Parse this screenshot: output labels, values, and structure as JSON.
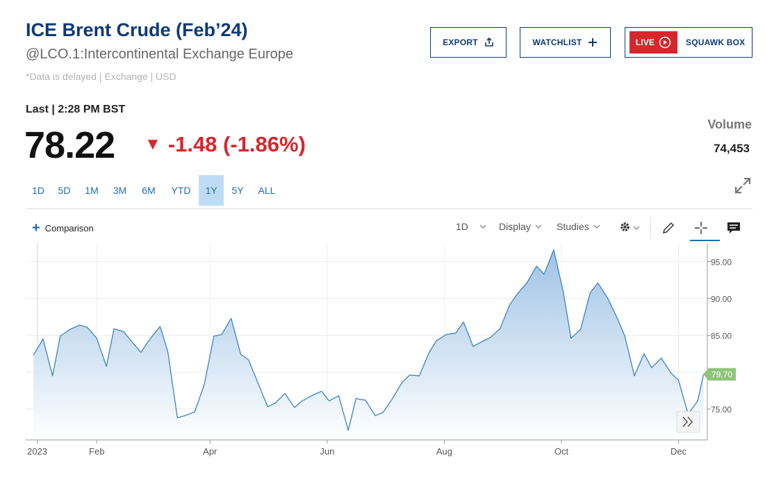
{
  "header": {
    "title": "ICE Brent Crude (Feb’24)",
    "subtitle": "@LCO.1:Intercontinental Exchange Europe",
    "delayed_note": "*Data is delayed | Exchange | USD"
  },
  "buttons": {
    "export": "EXPORT",
    "watchlist": "WATCHLIST",
    "live": "LIVE",
    "squawk": "SQUAWK BOX"
  },
  "quote": {
    "last_label": "Last | 2:28 PM BST",
    "last_price": "78.22",
    "change": "-1.48 (-1.86%)",
    "volume_label": "Volume",
    "volume": "74,453"
  },
  "ranges": [
    {
      "label": "1D",
      "active": false
    },
    {
      "label": "5D",
      "active": false
    },
    {
      "label": "1M",
      "active": false
    },
    {
      "label": "3M",
      "active": false
    },
    {
      "label": "6M",
      "active": false
    },
    {
      "label": "YTD",
      "active": false
    },
    {
      "label": "1Y",
      "active": true
    },
    {
      "label": "5Y",
      "active": false
    },
    {
      "label": "ALL",
      "active": false
    }
  ],
  "toolbar": {
    "comparison": "Comparison",
    "interval": "1D",
    "display": "Display",
    "studies": "Studies"
  },
  "colors": {
    "brand_navy": "#0c3a78",
    "link_blue": "#1f6db0",
    "down_red": "#d7262c",
    "line": "#3a84c0",
    "area_top": "#9fc3e6",
    "last_badge": "#8fc57a"
  },
  "chart_data": {
    "type": "area",
    "title": "",
    "xlabel": "",
    "ylabel": "",
    "ylim": [
      70.8,
      97.5
    ],
    "yticks": [
      "75.00",
      "80.00",
      "85.00",
      "90.00",
      "95.00"
    ],
    "xticks": [
      "2023",
      "Feb",
      "Apr",
      "Jun",
      "Aug",
      "Oct",
      "Dec"
    ],
    "last_value_label": "79.70",
    "grid": true,
    "legend": "none",
    "x": [
      "2022-12-30",
      "2023-01-04",
      "2023-01-09",
      "2023-01-13",
      "2023-01-18",
      "2023-01-23",
      "2023-01-27",
      "2023-02-01",
      "2023-02-06",
      "2023-02-10",
      "2023-02-15",
      "2023-02-20",
      "2023-02-24",
      "2023-03-01",
      "2023-03-06",
      "2023-03-10",
      "2023-03-15",
      "2023-03-20",
      "2023-03-24",
      "2023-03-29",
      "2023-04-03",
      "2023-04-07",
      "2023-04-12",
      "2023-04-17",
      "2023-04-21",
      "2023-04-26",
      "2023-05-01",
      "2023-05-05",
      "2023-05-10",
      "2023-05-15",
      "2023-05-19",
      "2023-05-24",
      "2023-05-29",
      "2023-06-02",
      "2023-06-07",
      "2023-06-12",
      "2023-06-16",
      "2023-06-21",
      "2023-06-26",
      "2023-06-30",
      "2023-07-05",
      "2023-07-10",
      "2023-07-14",
      "2023-07-19",
      "2023-07-24",
      "2023-07-28",
      "2023-08-02",
      "2023-08-07",
      "2023-08-11",
      "2023-08-16",
      "2023-08-21",
      "2023-08-25",
      "2023-08-30",
      "2023-09-04",
      "2023-09-08",
      "2023-09-13",
      "2023-09-18",
      "2023-09-22",
      "2023-09-27",
      "2023-10-02",
      "2023-10-06",
      "2023-10-11",
      "2023-10-16",
      "2023-10-20",
      "2023-10-25",
      "2023-10-30",
      "2023-11-03",
      "2023-11-08",
      "2023-11-13",
      "2023-11-17",
      "2023-11-22",
      "2023-11-27",
      "2023-12-01",
      "2023-12-06",
      "2023-12-11",
      "2023-12-14"
    ],
    "series": [
      {
        "values": [
          82.3,
          84.5,
          79.5,
          84.9,
          85.8,
          86.4,
          86.1,
          84.6,
          80.8,
          85.9,
          85.5,
          83.9,
          82.7,
          84.6,
          86.2,
          82.8,
          73.8,
          74.2,
          74.6,
          78.3,
          84.9,
          85.1,
          87.3,
          82.4,
          81.7,
          78.5,
          75.3,
          75.8,
          77.1,
          75.2,
          76.1,
          76.8,
          77.4,
          76.1,
          76.8,
          72.1,
          76.4,
          76.2,
          74.1,
          74.5,
          76.4,
          78.6,
          79.6,
          79.5,
          82.6,
          84.3,
          85.1,
          85.3,
          86.8,
          83.5,
          84.2,
          84.7,
          85.9,
          89.1,
          90.6,
          92.1,
          94.4,
          93.3,
          96.6,
          90.9,
          84.6,
          85.8,
          90.8,
          92.1,
          90.1,
          87.4,
          84.9,
          79.5,
          82.5,
          80.6,
          81.9,
          79.9,
          78.9,
          74.3,
          76.1,
          79.7
        ]
      }
    ]
  }
}
